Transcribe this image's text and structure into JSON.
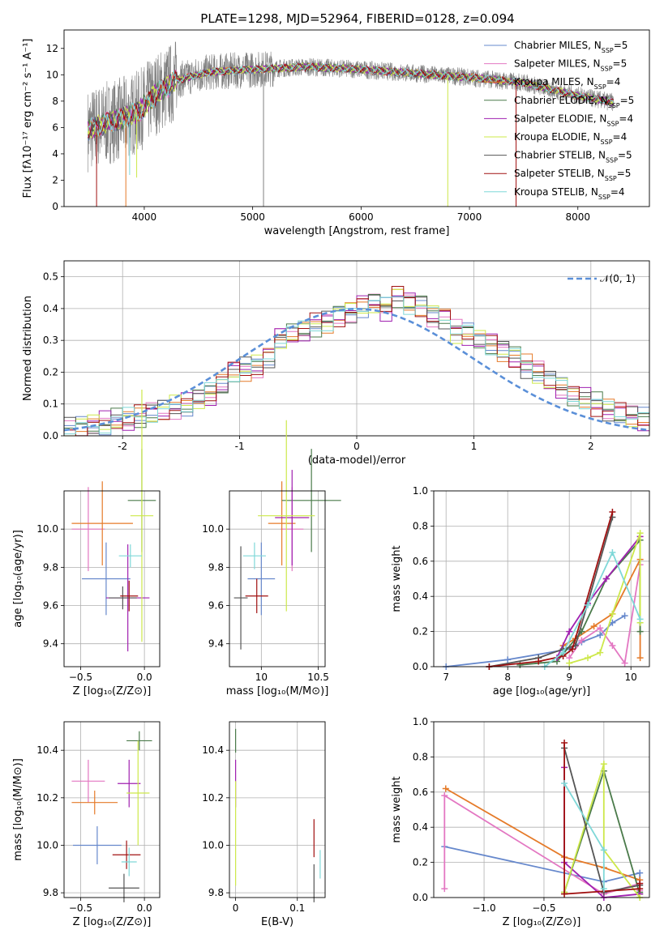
{
  "figure_title": "PLATE=1298, MJD=52964, FIBERID=0128, z=0.094",
  "colors": {
    "Chabrier MILES": "#6688cc",
    "Salpeter MILES": "#e377c2",
    "Kroupa MILES": "#e57a28",
    "Chabrier ELODIE": "#4a7a4a",
    "Salpeter ELODIE": "#a020b0",
    "Kroupa ELODIE": "#cde84a",
    "Chabrier STELIB": "#555555",
    "Salpeter STELIB": "#a01010",
    "Kroupa STELIB": "#7fd8d8",
    "Normal": "#5a8fd8",
    "data": "#808080"
  },
  "chart_data": [
    {
      "id": "spectrum",
      "type": "line",
      "xlabel": "wavelength [Angstrom, rest frame]",
      "ylabel": "Flux [fλ10⁻¹⁷ erg cm⁻² s⁻¹ A⁻¹]",
      "xlim": [
        3260,
        8660
      ],
      "ylim": [
        0,
        13.4
      ],
      "xticks": [
        4000,
        5000,
        6000,
        7000,
        8000
      ],
      "yticks": [
        0,
        2,
        4,
        6,
        8,
        10,
        12
      ],
      "x_range": [
        3480,
        8330
      ],
      "continuum_points": [
        [
          3480,
          5.8
        ],
        [
          3600,
          6.2
        ],
        [
          3800,
          6.7
        ],
        [
          3950,
          7.2
        ],
        [
          4100,
          8.5
        ],
        [
          4300,
          9.6
        ],
        [
          4600,
          10.2
        ],
        [
          5000,
          10.4
        ],
        [
          5500,
          10.6
        ],
        [
          6000,
          10.4
        ],
        [
          6500,
          10.1
        ],
        [
          7000,
          9.8
        ],
        [
          7500,
          9.4
        ],
        [
          8000,
          8.4
        ],
        [
          8330,
          7.9
        ]
      ],
      "legend": [
        {
          "label": "Chabrier MILES, N",
          "sub": "SSP",
          "suffix": "=5"
        },
        {
          "label": "Salpeter MILES, N",
          "sub": "SSP",
          "suffix": "=5"
        },
        {
          "label": "Kroupa MILES, N",
          "sub": "SSP",
          "suffix": "=4"
        },
        {
          "label": "Chabrier ELODIE, N",
          "sub": "SSP",
          "suffix": "=5"
        },
        {
          "label": "Salpeter ELODIE, N",
          "sub": "SSP",
          "suffix": "=4"
        },
        {
          "label": "Kroupa ELODIE, N",
          "sub": "SSP",
          "suffix": "=4"
        },
        {
          "label": "Chabrier STELIB, N",
          "sub": "SSP",
          "suffix": "=5"
        },
        {
          "label": "Salpeter STELIB, N",
          "sub": "SSP",
          "suffix": "=5"
        },
        {
          "label": "Kroupa STELIB, N",
          "sub": "SSP",
          "suffix": "=4"
        }
      ]
    },
    {
      "id": "residuals",
      "type": "histogram",
      "xlabel": "(data-model)/error",
      "ylabel": "Normed distribution",
      "xlim": [
        -2.5,
        2.5
      ],
      "ylim": [
        0,
        0.55
      ],
      "xticks": [
        -2,
        -1,
        0,
        1,
        2
      ],
      "yticks": [
        0.0,
        0.1,
        0.2,
        0.3,
        0.4,
        0.5
      ],
      "bin_edges_start": -2.5,
      "bin_width": 0.1,
      "base_values": [
        0.02,
        0.025,
        0.035,
        0.04,
        0.05,
        0.05,
        0.06,
        0.07,
        0.08,
        0.09,
        0.1,
        0.12,
        0.13,
        0.16,
        0.2,
        0.21,
        0.22,
        0.25,
        0.31,
        0.32,
        0.33,
        0.35,
        0.36,
        0.38,
        0.39,
        0.41,
        0.42,
        0.4,
        0.44,
        0.42,
        0.41,
        0.38,
        0.37,
        0.33,
        0.32,
        0.3,
        0.29,
        0.27,
        0.25,
        0.22,
        0.2,
        0.17,
        0.15,
        0.13,
        0.12,
        0.1,
        0.08,
        0.07,
        0.06,
        0.05
      ],
      "legend_label": "𝒩(0, 1)"
    },
    {
      "id": "age_metallicity",
      "type": "errorbar",
      "xlabel": "Z [log₁₀(Z/Z⊙)]",
      "ylabel": "age  [log₁₀(age/yr)]",
      "xlim": [
        -0.63,
        0.12
      ],
      "ylim": [
        9.28,
        10.2
      ],
      "xticks": [
        -0.5,
        0.0
      ],
      "xticklabels": [
        "−0.5",
        "0.0"
      ],
      "yticks": [
        9.4,
        9.6,
        9.8,
        10.0
      ],
      "points": [
        {
          "model": "Chabrier MILES",
          "x": -0.3,
          "y": 9.74,
          "xerr": 0.19,
          "yerr": 0.19
        },
        {
          "model": "Salpeter MILES",
          "x": -0.44,
          "y": 10.0,
          "xerr": 0.13,
          "yerr": 0.22
        },
        {
          "model": "Kroupa MILES",
          "x": -0.33,
          "y": 10.03,
          "xerr": 0.24,
          "yerr": 0.22
        },
        {
          "model": "Chabrier ELODIE",
          "x": -0.02,
          "y": 10.15,
          "xerr": 0.11,
          "yerr": 0.27
        },
        {
          "model": "Salpeter ELODIE",
          "x": -0.13,
          "y": 9.64,
          "xerr": 0.17,
          "yerr": 0.28
        },
        {
          "model": "Kroupa ELODIE",
          "x": -0.02,
          "y": 10.07,
          "xerr": 0.09,
          "yerr": 0.66
        },
        {
          "model": "Chabrier STELIB",
          "x": -0.17,
          "y": 9.64,
          "xerr": 0.11,
          "yerr": 0.06
        },
        {
          "model": "Salpeter STELIB",
          "x": -0.12,
          "y": 9.65,
          "xerr": 0.07,
          "yerr": 0.08
        },
        {
          "model": "Kroupa STELIB",
          "x": -0.11,
          "y": 9.86,
          "xerr": 0.09,
          "yerr": 0.06
        }
      ]
    },
    {
      "id": "age_mass",
      "type": "errorbar",
      "xlabel": "mass [log₁₀(M/M⊙)]",
      "ylabel": "",
      "xlim": [
        9.72,
        10.56
      ],
      "ylim": [
        9.28,
        10.2
      ],
      "xticks": [
        10.0,
        10.5
      ],
      "yticks": [
        9.4,
        9.6,
        9.8,
        10.0
      ],
      "points": [
        {
          "model": "Chabrier MILES",
          "x": 10.0,
          "y": 9.74,
          "xerr": 0.12,
          "yerr": 0.19
        },
        {
          "model": "Salpeter MILES",
          "x": 10.27,
          "y": 10.0,
          "xerr": 0.1,
          "yerr": 0.22
        },
        {
          "model": "Kroupa MILES",
          "x": 10.18,
          "y": 10.03,
          "xerr": 0.12,
          "yerr": 0.22
        },
        {
          "model": "Chabrier ELODIE",
          "x": 10.44,
          "y": 10.15,
          "xerr": 0.26,
          "yerr": 0.27
        },
        {
          "model": "Salpeter ELODIE",
          "x": 10.27,
          "y": 10.06,
          "xerr": 0.15,
          "yerr": 0.25
        },
        {
          "model": "Kroupa ELODIE",
          "x": 10.22,
          "y": 10.07,
          "xerr": 0.25,
          "yerr": 0.5
        },
        {
          "model": "Chabrier STELIB",
          "x": 9.82,
          "y": 9.64,
          "xerr": 0.06,
          "yerr": 0.27
        },
        {
          "model": "Salpeter STELIB",
          "x": 9.96,
          "y": 9.65,
          "xerr": 0.1,
          "yerr": 0.09
        },
        {
          "model": "Kroupa STELIB",
          "x": 9.94,
          "y": 9.86,
          "xerr": 0.1,
          "yerr": 0.07
        }
      ]
    },
    {
      "id": "weight_age",
      "type": "line",
      "xlabel": "age  [log₁₀(age/yr)]",
      "ylabel": "mass weight",
      "xlim": [
        6.8,
        10.3
      ],
      "ylim": [
        0,
        1.0
      ],
      "xticks": [
        7,
        8,
        9,
        10
      ],
      "yticks": [
        0.0,
        0.2,
        0.4,
        0.6,
        0.8,
        1.0
      ],
      "series": [
        {
          "model": "Chabrier MILES",
          "x": [
            7.0,
            8.0,
            9.0,
            9.2,
            9.5,
            9.7,
            9.9
          ],
          "y": [
            0.0,
            0.04,
            0.1,
            0.14,
            0.18,
            0.25,
            0.29
          ]
        },
        {
          "model": "Salpeter MILES",
          "x": [
            9.0,
            9.2,
            9.5,
            9.7,
            9.9,
            10.15
          ],
          "y": [
            0.05,
            0.15,
            0.22,
            0.12,
            0.02,
            0.58
          ]
        },
        {
          "model": "Kroupa MILES",
          "x": [
            8.9,
            9.1,
            9.4,
            9.7,
            10.15,
            10.15
          ],
          "y": [
            0.12,
            0.16,
            0.23,
            0.3,
            0.61,
            0.05
          ]
        },
        {
          "model": "Chabrier ELODIE",
          "x": [
            8.2,
            8.8,
            9.2,
            9.6,
            10.15,
            10.15
          ],
          "y": [
            0.01,
            0.03,
            0.2,
            0.5,
            0.72,
            0.2
          ]
        },
        {
          "model": "Salpeter ELODIE",
          "x": [
            8.8,
            9.0,
            9.3,
            9.6,
            10.15
          ],
          "y": [
            0.05,
            0.2,
            0.36,
            0.5,
            0.74
          ]
        },
        {
          "model": "Kroupa ELODIE",
          "x": [
            9.0,
            9.3,
            9.5,
            9.7,
            10.15,
            10.15
          ],
          "y": [
            0.02,
            0.05,
            0.08,
            0.3,
            0.76,
            0.25
          ]
        },
        {
          "model": "Chabrier STELIB",
          "x": [
            7.7,
            8.5,
            8.9,
            9.1,
            9.7
          ],
          "y": [
            0.0,
            0.05,
            0.1,
            0.12,
            0.85
          ]
        },
        {
          "model": "Salpeter STELIB",
          "x": [
            7.7,
            8.5,
            8.9,
            9.05,
            9.7
          ],
          "y": [
            0.0,
            0.03,
            0.06,
            0.1,
            0.88
          ]
        },
        {
          "model": "Kroupa STELIB",
          "x": [
            8.6,
            8.9,
            9.3,
            9.7,
            10.15
          ],
          "y": [
            0.0,
            0.08,
            0.35,
            0.65,
            0.27
          ]
        }
      ]
    },
    {
      "id": "mass_metallicity",
      "type": "errorbar",
      "xlabel": "Z [log₁₀(Z/Z⊙)]",
      "ylabel": "mass [log₁₀(M/M⊙)]",
      "xlim": [
        -0.63,
        0.12
      ],
      "ylim": [
        9.78,
        10.52
      ],
      "xticks": [
        -0.5,
        0.0
      ],
      "xticklabels": [
        "−0.5",
        "0.0"
      ],
      "yticks": [
        9.8,
        10.0,
        10.2,
        10.4
      ],
      "points": [
        {
          "model": "Chabrier MILES",
          "x": -0.37,
          "y": 10.0,
          "xerr": 0.19,
          "yerr": 0.08
        },
        {
          "model": "Salpeter MILES",
          "x": -0.44,
          "y": 10.27,
          "xerr": 0.13,
          "yerr": 0.09
        },
        {
          "model": "Kroupa MILES",
          "x": -0.39,
          "y": 10.18,
          "xerr": 0.18,
          "yerr": 0.05
        },
        {
          "model": "Chabrier ELODIE",
          "x": -0.04,
          "y": 10.44,
          "xerr": 0.1,
          "yerr": 0.04
        },
        {
          "model": "Salpeter ELODIE",
          "x": -0.12,
          "y": 10.26,
          "xerr": 0.09,
          "yerr": 0.1
        },
        {
          "model": "Kroupa ELODIE",
          "x": -0.05,
          "y": 10.22,
          "xerr": 0.09,
          "yerr": 0.22
        },
        {
          "model": "Chabrier STELIB",
          "x": -0.16,
          "y": 9.82,
          "xerr": 0.12,
          "yerr": 0.06
        },
        {
          "model": "Salpeter STELIB",
          "x": -0.14,
          "y": 9.96,
          "xerr": 0.11,
          "yerr": 0.06
        },
        {
          "model": "Kroupa STELIB",
          "x": -0.12,
          "y": 9.93,
          "xerr": 0.06,
          "yerr": 0.06
        }
      ]
    },
    {
      "id": "mass_ebv",
      "type": "errorbar",
      "xlabel": "E(B-V)",
      "ylabel": "",
      "xlim": [
        -0.01,
        0.145
      ],
      "ylim": [
        9.78,
        10.52
      ],
      "xticks": [
        0.0,
        0.1
      ],
      "yticks": [
        9.8,
        10.0,
        10.2,
        10.4
      ],
      "points": [
        {
          "model": "Chabrier ELODIE",
          "x": 0.0,
          "y": 10.44,
          "xerr": 0,
          "yerr": 0.05
        },
        {
          "model": "Salpeter ELODIE",
          "x": 0.0,
          "y": 10.26,
          "xerr": 0,
          "yerr": 0.1
        },
        {
          "model": "Kroupa ELODIE",
          "x": 0.0,
          "y": 10.05,
          "xerr": 0,
          "yerr": 0.22
        },
        {
          "model": "Chabrier STELIB",
          "x": 0.127,
          "y": 9.84,
          "xerr": 0,
          "yerr": 0.08
        },
        {
          "model": "Salpeter STELIB",
          "x": 0.127,
          "y": 10.03,
          "xerr": 0,
          "yerr": 0.08
        },
        {
          "model": "Kroupa STELIB",
          "x": 0.137,
          "y": 9.92,
          "xerr": 0,
          "yerr": 0.06
        }
      ]
    },
    {
      "id": "weight_metallicity",
      "type": "line",
      "xlabel": "Z [log₁₀(Z/Z⊙)]",
      "ylabel": "mass weight",
      "xlim": [
        -1.42,
        0.38
      ],
      "ylim": [
        0,
        1.0
      ],
      "xticks": [
        -1.0,
        -0.5,
        0.0
      ],
      "xticklabels": [
        "−1.0",
        "−0.5",
        "0.0"
      ],
      "yticks": [
        0.0,
        0.2,
        0.4,
        0.6,
        0.8,
        1.0
      ],
      "series": [
        {
          "model": "Chabrier MILES",
          "x": [
            -1.33,
            0.0,
            0.3,
            0.3
          ],
          "y": [
            0.29,
            0.09,
            0.14,
            0.1
          ]
        },
        {
          "model": "Salpeter MILES",
          "x": [
            -1.33,
            -1.33,
            0.0,
            0.3,
            0.3
          ],
          "y": [
            0.05,
            0.58,
            0.02,
            0.08,
            0.04
          ]
        },
        {
          "model": "Kroupa MILES",
          "x": [
            -1.32,
            -0.33,
            0.0,
            0.3
          ],
          "y": [
            0.62,
            0.23,
            0.17,
            0.1
          ]
        },
        {
          "model": "Chabrier ELODIE",
          "x": [
            -0.33,
            0.0,
            0.3,
            0.3
          ],
          "y": [
            0.03,
            0.72,
            0.02,
            0.03
          ]
        },
        {
          "model": "Salpeter ELODIE",
          "x": [
            -0.33,
            -0.33,
            0.0,
            0.3
          ],
          "y": [
            0.74,
            0.2,
            0.0,
            0.02
          ]
        },
        {
          "model": "Kroupa ELODIE",
          "x": [
            -0.33,
            0.0,
            0.0,
            0.3
          ],
          "y": [
            0.03,
            0.76,
            0.27,
            0.0
          ]
        },
        {
          "model": "Chabrier STELIB",
          "x": [
            -0.33,
            0.0,
            0.3
          ],
          "y": [
            0.85,
            0.03,
            0.07
          ]
        },
        {
          "model": "Salpeter STELIB",
          "x": [
            -0.33,
            -0.33,
            0.3,
            0.3
          ],
          "y": [
            0.88,
            0.02,
            0.05,
            0.08
          ]
        },
        {
          "model": "Kroupa STELIB",
          "x": [
            -0.33,
            0.0,
            0.0
          ],
          "y": [
            0.65,
            0.27,
            0.05
          ]
        }
      ]
    }
  ]
}
